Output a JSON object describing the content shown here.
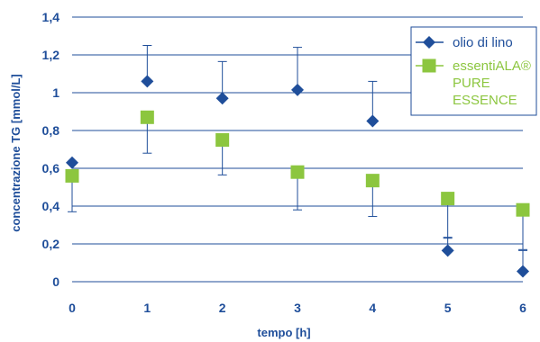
{
  "chart_data": {
    "type": "scatter",
    "title": "",
    "xlabel": "tempo [h]",
    "ylabel": "concentrazione TG [mmol/L]",
    "xlim": [
      0,
      6
    ],
    "ylim": [
      0,
      1.4
    ],
    "x_ticks": [
      "0",
      "1",
      "2",
      "3",
      "4",
      "5",
      "6"
    ],
    "y_ticks": [
      "0",
      "0,2",
      "0,4",
      "0,6",
      "0,8",
      "1",
      "1,2",
      "1,4"
    ],
    "grid": "horizontal",
    "legend_position": "top-right",
    "series": [
      {
        "name": "olio di lino",
        "marker": "diamond",
        "color": "#1f4e9a",
        "x": [
          0,
          1,
          2,
          3,
          4,
          5,
          6
        ],
        "y": [
          0.63,
          1.06,
          0.97,
          1.015,
          0.85,
          0.165,
          0.055
        ],
        "error_plus": [
          0.0,
          0.19,
          0.195,
          0.225,
          0.21,
          0.07,
          0.11
        ],
        "error_minus": [
          0.0,
          0.0,
          0.0,
          0.0,
          0.0,
          0.0,
          0.0
        ]
      },
      {
        "name": "essentiALA® PURE ESSENCE",
        "legend_lines": [
          "essentiALA®",
          "PURE",
          "ESSENCE"
        ],
        "marker": "square",
        "color": "#8cc63f",
        "x": [
          0,
          1,
          2,
          3,
          4,
          5,
          6
        ],
        "y": [
          0.56,
          0.87,
          0.75,
          0.58,
          0.535,
          0.44,
          0.38
        ],
        "error_plus": [
          0.0,
          0.0,
          0.0,
          0.0,
          0.0,
          0.0,
          0.0
        ],
        "error_minus": [
          0.19,
          0.19,
          0.185,
          0.2,
          0.19,
          0.21,
          0.21
        ]
      }
    ]
  }
}
